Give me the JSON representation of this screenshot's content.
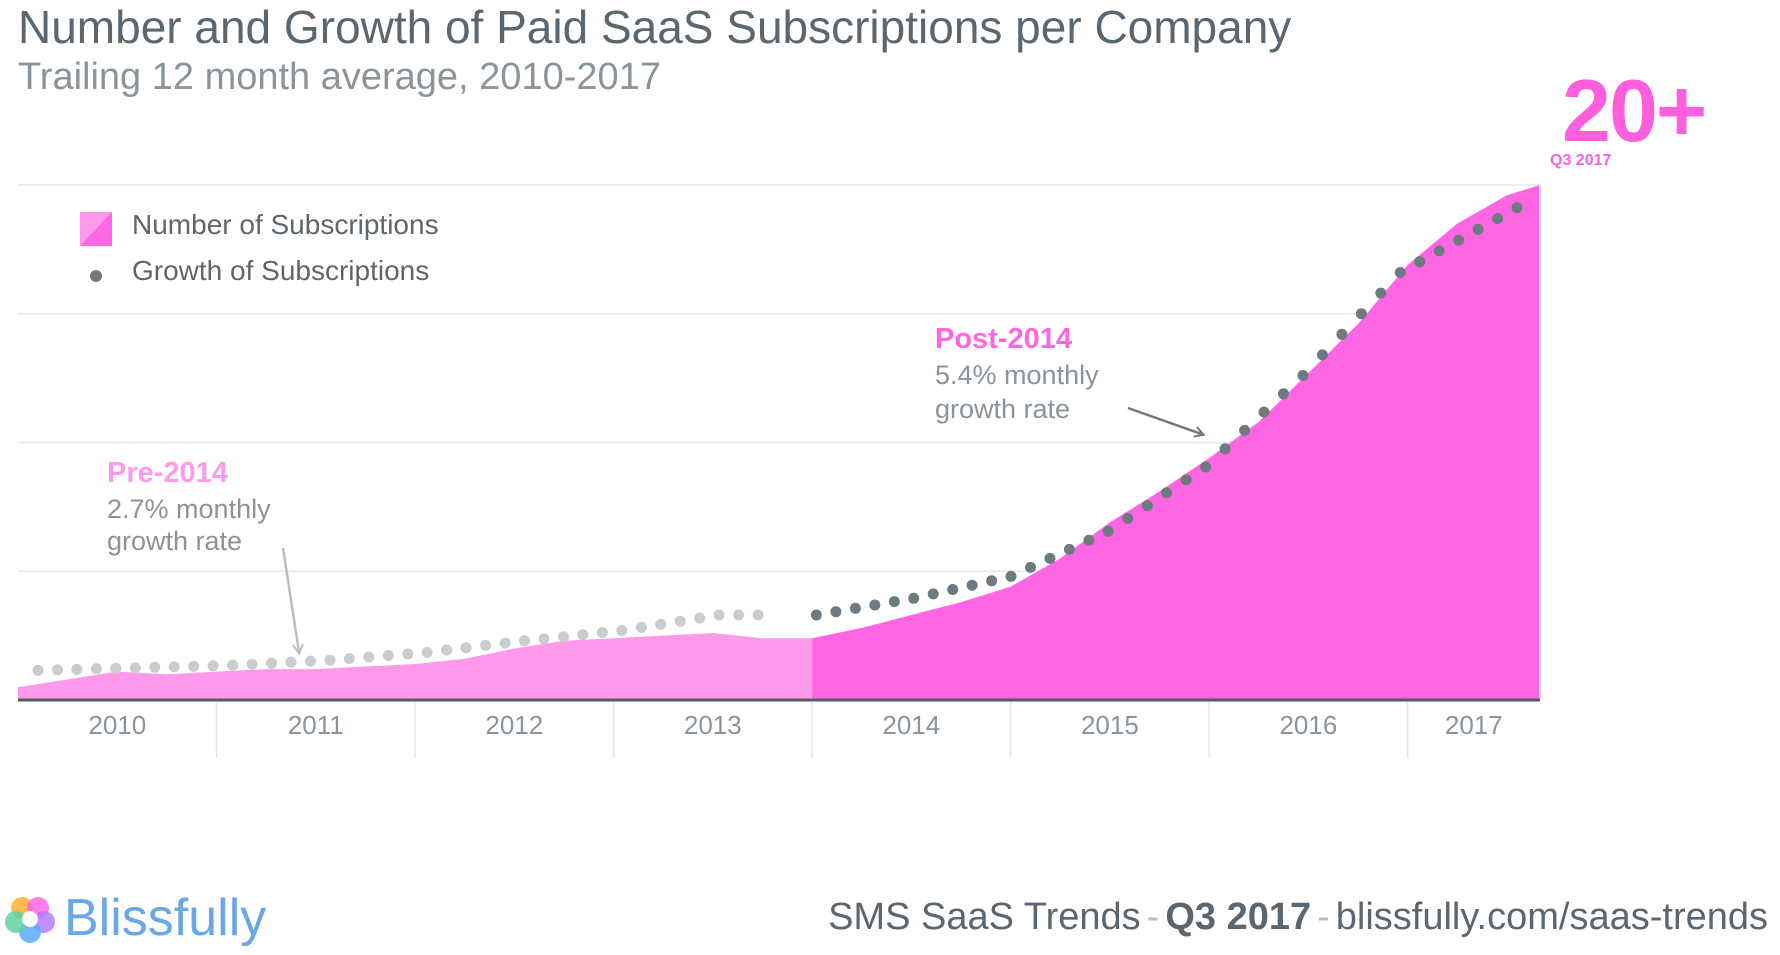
{
  "header": {
    "title": "Number and Growth of Paid SaaS Subscriptions per Company",
    "subtitle": "Trailing 12 month average, 2010-2017",
    "highlight_value": "20+",
    "highlight_label": "Q3 2017"
  },
  "chart_data": {
    "type": "area",
    "title": "Number and Growth of Paid SaaS Subscriptions per Company",
    "subtitle": "Trailing 12 month average, 2010-2017",
    "xlabel": "",
    "ylabel": "",
    "grid": true,
    "legend_position": "top-left",
    "x_ticks": [
      "2010",
      "2011",
      "2012",
      "2013",
      "2014",
      "2015",
      "2016",
      "2017"
    ],
    "xlim": [
      "2010-01",
      "2017-09"
    ],
    "ylim": [
      0,
      20
    ],
    "series": [
      {
        "name": "Number of Subscriptions",
        "style": "area",
        "periods": [
          {
            "label": "Pre-2014",
            "color": "#ff99ec"
          },
          {
            "label": "Post-2014",
            "color": "#ff66e3"
          }
        ],
        "x": [
          "2010-01",
          "2010-04",
          "2010-07",
          "2010-10",
          "2011-01",
          "2011-04",
          "2011-07",
          "2011-10",
          "2012-01",
          "2012-04",
          "2012-07",
          "2012-10",
          "2013-01",
          "2013-04",
          "2013-07",
          "2013-10",
          "2014-01",
          "2014-04",
          "2014-07",
          "2014-10",
          "2015-01",
          "2015-04",
          "2015-07",
          "2015-10",
          "2016-01",
          "2016-04",
          "2016-07",
          "2016-10",
          "2017-01",
          "2017-04",
          "2017-07",
          "2017-09"
        ],
        "values": [
          0.5,
          0.8,
          1.1,
          1.0,
          1.1,
          1.2,
          1.2,
          1.3,
          1.4,
          1.6,
          2.0,
          2.3,
          2.4,
          2.5,
          2.6,
          2.4,
          2.4,
          2.8,
          3.3,
          3.8,
          4.4,
          5.5,
          6.9,
          8.1,
          9.4,
          10.8,
          12.7,
          14.6,
          16.9,
          18.5,
          19.6,
          20.0
        ]
      },
      {
        "name": "Growth of Subscriptions",
        "style": "dotted",
        "x": [
          "2010-01",
          "2010-07",
          "2011-01",
          "2011-07",
          "2012-01",
          "2012-07",
          "2013-01",
          "2013-07",
          "2014-01",
          "2014-07",
          "2015-01",
          "2015-07",
          "2016-01",
          "2016-07",
          "2017-01",
          "2017-09"
        ],
        "values": [
          1.15,
          1.25,
          1.35,
          1.55,
          1.85,
          2.3,
          2.7,
          3.3,
          3.3,
          3.95,
          4.8,
          6.55,
          9.05,
          12.6,
          16.6,
          19.4
        ]
      }
    ],
    "annotations": [
      {
        "title": "Pre-2014",
        "text_line1": "2.7% monthly",
        "text_line2": "growth rate",
        "target_x": "2011-06",
        "target_y": 1.65
      },
      {
        "title": "Post-2014",
        "text_line1": "5.4% monthly",
        "text_line2": "growth rate",
        "target_x": "2016-02",
        "target_y": 10.3
      }
    ],
    "colors": {
      "pre_2014": "#ff99ec",
      "post_2014": "#ff66e3",
      "dots_pre": "#c7cdd1",
      "dots_post": "#6e7a82",
      "axis": "#555a5e",
      "grid": "#e6e8ea"
    }
  },
  "footer": {
    "brand": "Blissfully",
    "brand_icon": "blissfully-logo-icon",
    "report_name": "SMS SaaS Trends",
    "separator": "-",
    "quarter": "Q3 2017",
    "url": "blissfully.com/saas-trends"
  }
}
